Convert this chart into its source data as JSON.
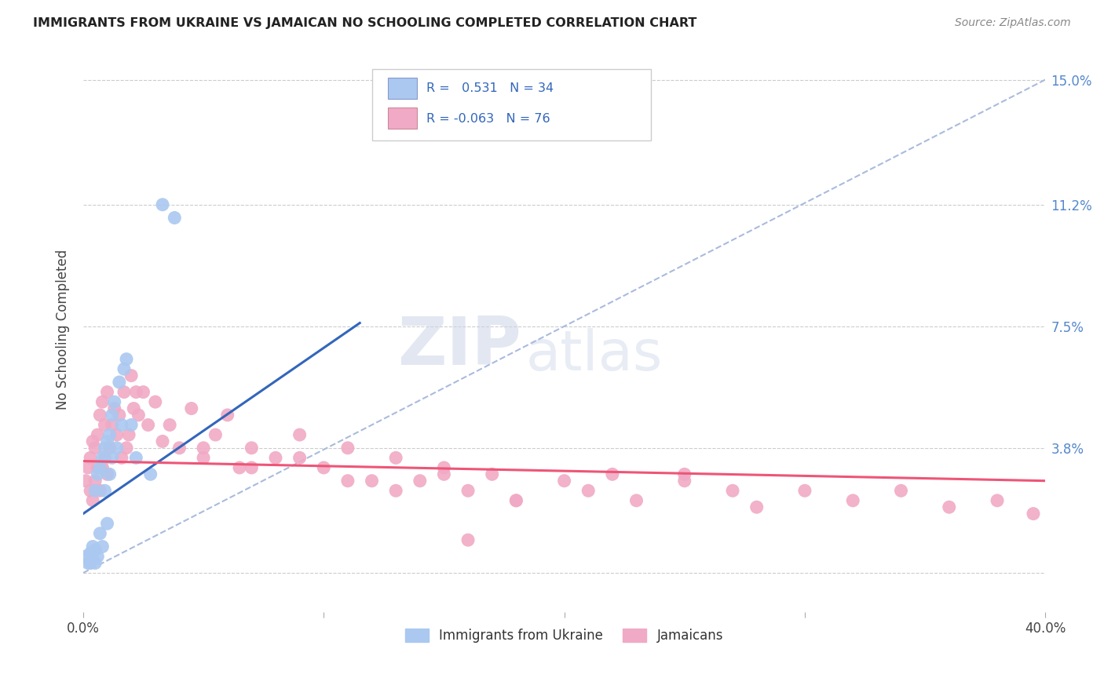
{
  "title": "IMMIGRANTS FROM UKRAINE VS JAMAICAN NO SCHOOLING COMPLETED CORRELATION CHART",
  "source": "Source: ZipAtlas.com",
  "ylabel": "No Schooling Completed",
  "xlim": [
    0.0,
    0.4
  ],
  "ylim": [
    -0.012,
    0.16
  ],
  "x_ticks": [
    0.0,
    0.1,
    0.2,
    0.3,
    0.4
  ],
  "y_ticks": [
    0.0,
    0.038,
    0.075,
    0.112,
    0.15
  ],
  "y_tick_labels": [
    "",
    "3.8%",
    "7.5%",
    "11.2%",
    "15.0%"
  ],
  "color_ukraine": "#aac8f0",
  "color_jamaican": "#f0aac5",
  "line_color_ukraine": "#3366bb",
  "line_color_jamaican": "#ee5577",
  "dashed_line_color": "#aabbdd",
  "ukraine_line_x0": 0.0,
  "ukraine_line_y0": 0.018,
  "ukraine_line_x1": 0.115,
  "ukraine_line_y1": 0.076,
  "jamaican_line_x0": 0.0,
  "jamaican_line_y0": 0.034,
  "jamaican_line_x1": 0.4,
  "jamaican_line_y1": 0.028,
  "ukraine_points_x": [
    0.001,
    0.002,
    0.003,
    0.003,
    0.004,
    0.004,
    0.005,
    0.005,
    0.005,
    0.006,
    0.006,
    0.007,
    0.007,
    0.008,
    0.008,
    0.009,
    0.009,
    0.01,
    0.01,
    0.011,
    0.011,
    0.012,
    0.012,
    0.013,
    0.014,
    0.015,
    0.016,
    0.017,
    0.018,
    0.02,
    0.022,
    0.028,
    0.033,
    0.038
  ],
  "ukraine_points_y": [
    0.005,
    0.003,
    0.006,
    0.003,
    0.008,
    0.004,
    0.007,
    0.003,
    0.025,
    0.005,
    0.03,
    0.032,
    0.012,
    0.035,
    0.008,
    0.038,
    0.025,
    0.04,
    0.015,
    0.042,
    0.03,
    0.048,
    0.035,
    0.052,
    0.038,
    0.058,
    0.045,
    0.062,
    0.065,
    0.045,
    0.035,
    0.03,
    0.112,
    0.108
  ],
  "jamaican_points_x": [
    0.001,
    0.002,
    0.003,
    0.003,
    0.004,
    0.004,
    0.005,
    0.005,
    0.006,
    0.006,
    0.007,
    0.007,
    0.008,
    0.008,
    0.009,
    0.009,
    0.01,
    0.01,
    0.011,
    0.012,
    0.013,
    0.014,
    0.015,
    0.016,
    0.017,
    0.018,
    0.019,
    0.02,
    0.021,
    0.022,
    0.023,
    0.025,
    0.027,
    0.03,
    0.033,
    0.036,
    0.04,
    0.045,
    0.05,
    0.055,
    0.06,
    0.065,
    0.07,
    0.08,
    0.09,
    0.1,
    0.11,
    0.12,
    0.13,
    0.14,
    0.15,
    0.16,
    0.17,
    0.18,
    0.2,
    0.21,
    0.22,
    0.23,
    0.25,
    0.27,
    0.28,
    0.3,
    0.32,
    0.34,
    0.36,
    0.38,
    0.395,
    0.15,
    0.18,
    0.25,
    0.05,
    0.07,
    0.09,
    0.11,
    0.13,
    0.16
  ],
  "jamaican_points_y": [
    0.028,
    0.032,
    0.035,
    0.025,
    0.04,
    0.022,
    0.038,
    0.028,
    0.042,
    0.032,
    0.048,
    0.025,
    0.052,
    0.032,
    0.045,
    0.035,
    0.055,
    0.03,
    0.038,
    0.045,
    0.05,
    0.042,
    0.048,
    0.035,
    0.055,
    0.038,
    0.042,
    0.06,
    0.05,
    0.055,
    0.048,
    0.055,
    0.045,
    0.052,
    0.04,
    0.045,
    0.038,
    0.05,
    0.035,
    0.042,
    0.048,
    0.032,
    0.038,
    0.035,
    0.042,
    0.032,
    0.038,
    0.028,
    0.035,
    0.028,
    0.032,
    0.025,
    0.03,
    0.022,
    0.028,
    0.025,
    0.03,
    0.022,
    0.028,
    0.025,
    0.02,
    0.025,
    0.022,
    0.025,
    0.02,
    0.022,
    0.018,
    0.03,
    0.022,
    0.03,
    0.038,
    0.032,
    0.035,
    0.028,
    0.025,
    0.01
  ],
  "watermark_zip": "ZIP",
  "watermark_atlas": "atlas"
}
